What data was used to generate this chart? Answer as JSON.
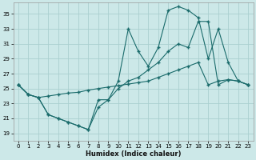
{
  "xlabel": "Humidex (Indice chaleur)",
  "bg_color": "#cce8e8",
  "grid_color": "#aacfcf",
  "line_color": "#1a6b6b",
  "xlim": [
    -0.5,
    23.5
  ],
  "ylim": [
    18.0,
    36.5
  ],
  "xticks": [
    0,
    1,
    2,
    3,
    4,
    5,
    6,
    7,
    8,
    9,
    10,
    11,
    12,
    13,
    14,
    15,
    16,
    17,
    18,
    19,
    20,
    21,
    22,
    23
  ],
  "yticks": [
    19,
    21,
    23,
    25,
    27,
    29,
    31,
    33,
    35
  ],
  "line1_x": [
    0,
    1,
    2,
    3,
    4,
    5,
    6,
    7,
    8,
    9,
    10,
    11,
    12,
    13,
    14,
    15,
    16,
    17,
    18,
    19,
    20,
    21,
    22,
    23
  ],
  "line1_y": [
    25.5,
    24.2,
    23.8,
    24.0,
    24.2,
    24.4,
    24.5,
    24.8,
    25.0,
    25.2,
    25.4,
    25.6,
    25.8,
    26.0,
    26.5,
    27.0,
    27.5,
    28.0,
    28.5,
    25.5,
    26.0,
    26.2,
    26.0,
    25.5
  ],
  "line2_x": [
    0,
    1,
    2,
    3,
    4,
    5,
    6,
    7,
    8,
    9,
    10,
    11,
    12,
    13,
    14,
    15,
    16,
    17,
    18,
    19,
    20,
    21,
    22,
    23
  ],
  "line2_y": [
    25.5,
    24.2,
    23.8,
    21.5,
    21.0,
    20.5,
    20.0,
    19.5,
    23.5,
    23.5,
    26.0,
    33.0,
    30.0,
    28.0,
    30.5,
    35.5,
    36.0,
    35.5,
    34.5,
    29.0,
    33.0,
    28.5,
    26.0,
    25.5
  ],
  "line3_x": [
    0,
    1,
    2,
    3,
    4,
    5,
    6,
    7,
    8,
    9,
    10,
    11,
    12,
    13,
    14,
    15,
    16,
    17,
    18,
    19,
    20,
    21,
    22,
    23
  ],
  "line3_y": [
    25.5,
    24.2,
    23.8,
    21.5,
    21.0,
    20.5,
    20.0,
    19.5,
    22.5,
    23.5,
    25.0,
    26.0,
    26.5,
    27.5,
    28.5,
    30.0,
    31.0,
    30.5,
    34.0,
    34.0,
    25.5,
    26.2,
    26.0,
    25.5
  ]
}
